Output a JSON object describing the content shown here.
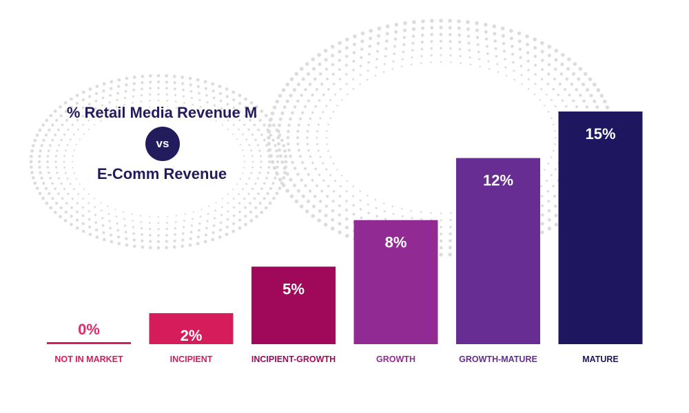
{
  "header": {
    "title_line_1": "% Retail Media Revenue M",
    "vs": "vs",
    "title_line_2": "E-Comm Revenue"
  },
  "colors": {
    "title": "#221b5c",
    "dots": "#dcdcdc",
    "zero_value": "#e1296b"
  },
  "chart_data": {
    "type": "bar",
    "title": "% Retail Media Revenue M vs E-Comm Revenue",
    "xlabel": "",
    "ylabel": "",
    "ylim": [
      0,
      15
    ],
    "grid": false,
    "legend": "none",
    "categories": [
      "NOT IN MARKET",
      "INCIPIENT",
      "INCIPIENT-GROWTH",
      "GROWTH",
      "GROWTH-MATURE",
      "MATURE"
    ],
    "values": [
      0,
      2,
      5,
      8,
      12,
      15
    ],
    "value_labels": [
      "0%",
      "2%",
      "5%",
      "8%",
      "12%",
      "15%"
    ],
    "bar_colors": [
      "#d61c5a",
      "#d61c5a",
      "#a0095a",
      "#922a93",
      "#672d92",
      "#1f1660"
    ]
  }
}
